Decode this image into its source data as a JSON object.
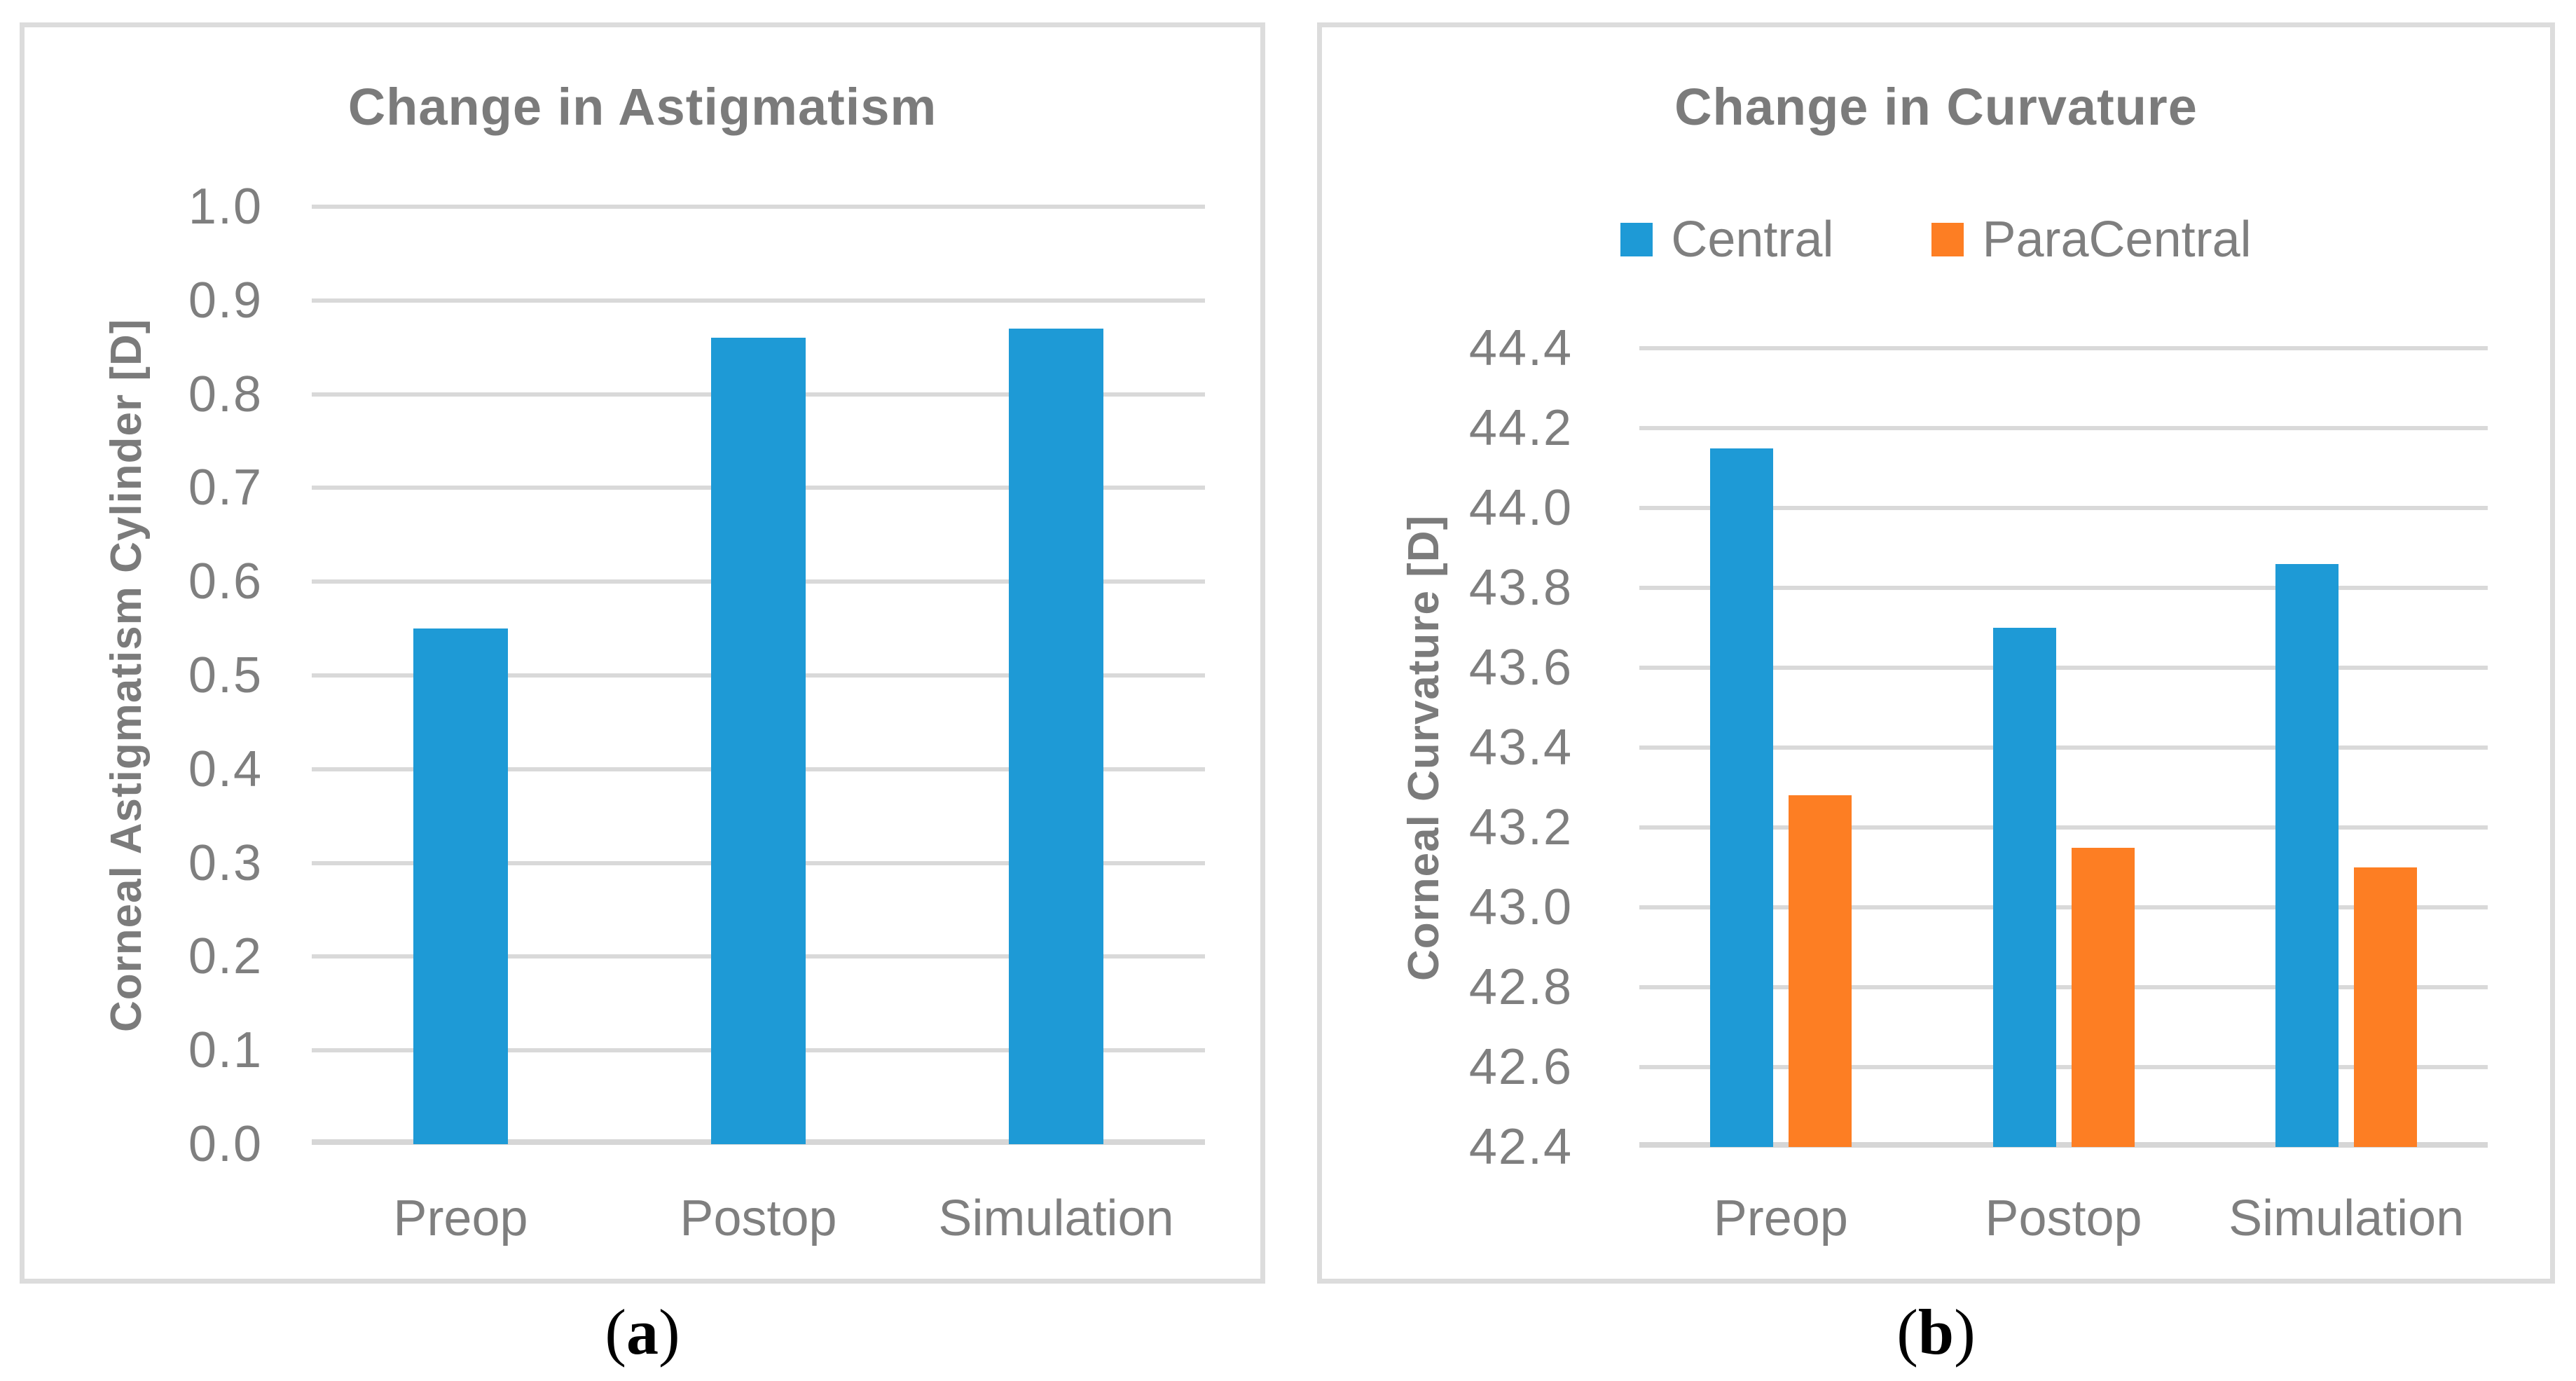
{
  "figure": {
    "captions": [
      {
        "open": "(",
        "letter": "a",
        "close": ")"
      },
      {
        "open": "(",
        "letter": "b",
        "close": ")"
      }
    ]
  },
  "colors": {
    "bar_blue": "#1e9ad6",
    "bar_orange": "#fd7e23",
    "gridline": "#d9d9d9",
    "panel_border": "#dcdcdc",
    "text_gray": "#7f7f7f"
  },
  "chart_data": [
    {
      "type": "bar",
      "title": "Change in Astigmatism",
      "xlabel": "",
      "ylabel": "Corneal Astigmatism Cylinder [D]",
      "categories": [
        "Preop",
        "Postop",
        "Simulation"
      ],
      "series": [
        {
          "name": "",
          "color": "#1e9ad6",
          "values": [
            0.55,
            0.86,
            0.87
          ]
        }
      ],
      "ylim": [
        0.0,
        1.0
      ],
      "ytick_step": 0.1,
      "ytick_decimals": 1,
      "grid": true,
      "legend": false
    },
    {
      "type": "bar",
      "title": "Change in Curvature",
      "xlabel": "",
      "ylabel": "Corneal Curvature [D]",
      "categories": [
        "Preop",
        "Postop",
        "Simulation"
      ],
      "series": [
        {
          "name": "Central",
          "color": "#1e9ad6",
          "values": [
            44.15,
            43.7,
            43.86
          ]
        },
        {
          "name": "ParaCentral",
          "color": "#fd7e23",
          "values": [
            43.28,
            43.15,
            43.1
          ]
        }
      ],
      "ylim": [
        42.4,
        44.4
      ],
      "ytick_step": 0.2,
      "ytick_decimals": 1,
      "grid": true,
      "legend": true,
      "legend_position": "top"
    }
  ]
}
